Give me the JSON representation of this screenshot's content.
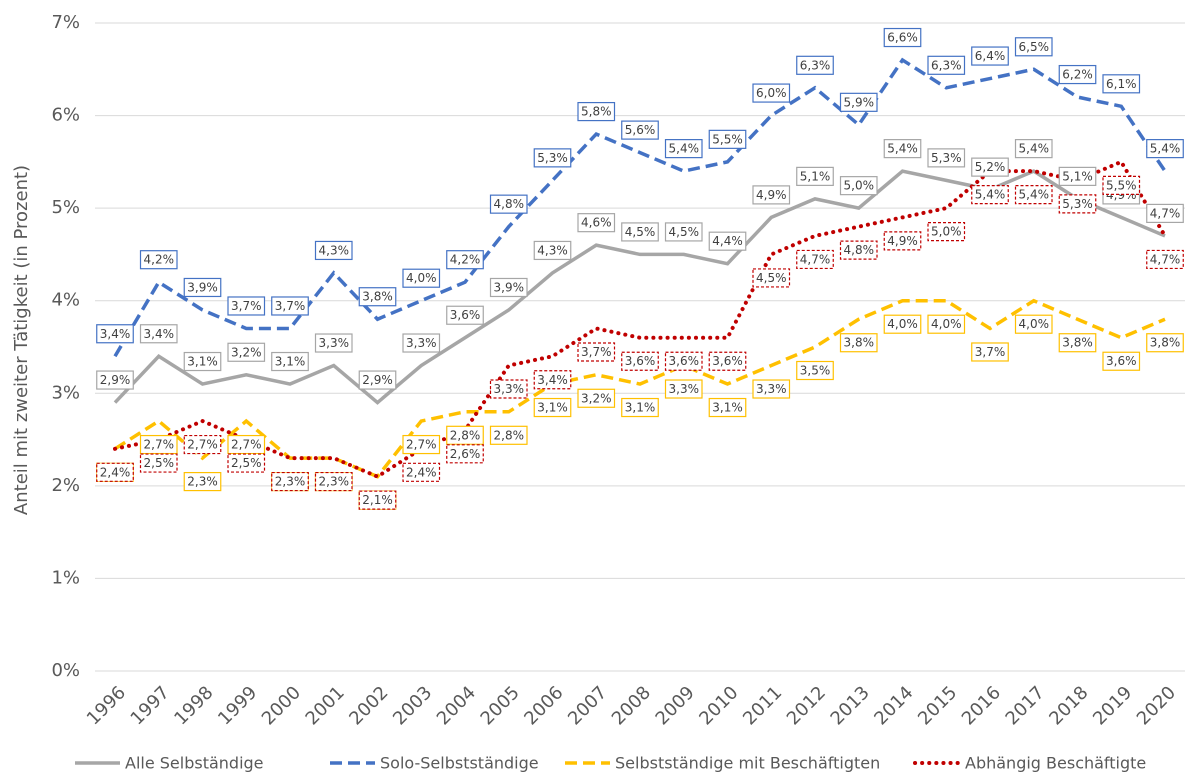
{
  "chart_data": {
    "type": "line",
    "y_label": "Anteil mit zweiter Tätigkeit (in Prozent)",
    "categories": [
      "1996",
      "1997",
      "1998",
      "1999",
      "2000",
      "2001",
      "2002",
      "2003",
      "2004",
      "2005",
      "2006",
      "2007",
      "2008",
      "2009",
      "2010",
      "2011",
      "2012",
      "2013",
      "2014",
      "2015",
      "2016",
      "2017",
      "2018",
      "2019",
      "2020"
    ],
    "ylim": [
      0,
      7
    ],
    "yticks": [
      {
        "value": 0,
        "label": "0%"
      },
      {
        "value": 1,
        "label": "1%"
      },
      {
        "value": 2,
        "label": "2%"
      },
      {
        "value": 3,
        "label": "3%"
      },
      {
        "value": 4,
        "label": "4%"
      },
      {
        "value": 5,
        "label": "5%"
      },
      {
        "value": 6,
        "label": "6%"
      },
      {
        "value": 7,
        "label": "7%"
      }
    ],
    "grid": true,
    "legend": "bottom",
    "series": [
      {
        "name": "Alle Selbständige",
        "color": "#a6a6a6",
        "line_style": "solid",
        "values": [
          2.9,
          3.4,
          3.1,
          3.2,
          3.1,
          3.3,
          2.9,
          3.3,
          3.6,
          3.9,
          4.3,
          4.6,
          4.5,
          4.5,
          4.4,
          4.9,
          5.1,
          5.0,
          5.4,
          5.3,
          5.2,
          5.4,
          5.1,
          4.9,
          4.7
        ],
        "value_labels": [
          "2,9%",
          "3,4%",
          "3,1%",
          "3,2%",
          "3,1%",
          "3,3%",
          "2,9%",
          "3,3%",
          "3,6%",
          "3,9%",
          "4,3%",
          "4,6%",
          "4,5%",
          "4,5%",
          "4,4%",
          "4,9%",
          "5,1%",
          "5,0%",
          "5,4%",
          "5,3%",
          "5,2%",
          "5,4%",
          "5,1%",
          "4,9%",
          "4,7%"
        ]
      },
      {
        "name": "Solo-Selbstständige",
        "color": "#4472c4",
        "line_style": "dashed",
        "values": [
          3.4,
          4.2,
          3.9,
          3.7,
          3.7,
          4.3,
          3.8,
          4.0,
          4.2,
          4.8,
          5.3,
          5.8,
          5.6,
          5.4,
          5.5,
          6.0,
          6.3,
          5.9,
          6.6,
          6.3,
          6.4,
          6.5,
          6.2,
          6.1,
          5.4
        ],
        "value_labels": [
          "3,4%",
          "4,2%",
          "3,9%",
          "3,7%",
          "3,7%",
          "4,3%",
          "3,8%",
          "4,0%",
          "4,2%",
          "4,8%",
          "5,3%",
          "5,8%",
          "5,6%",
          "5,4%",
          "5,5%",
          "6,0%",
          "6,3%",
          "5,9%",
          "6,6%",
          "6,3%",
          "6,4%",
          "6,5%",
          "6,2%",
          "6,1%",
          "5,4%"
        ]
      },
      {
        "name": "Selbstständige mit Beschäftigten",
        "color": "#ffc000",
        "line_style": "dashed",
        "values": [
          2.4,
          2.7,
          2.3,
          2.7,
          2.3,
          2.3,
          2.1,
          2.7,
          2.8,
          2.8,
          3.1,
          3.2,
          3.1,
          3.3,
          3.1,
          3.3,
          3.5,
          3.8,
          4.0,
          4.0,
          3.7,
          4.0,
          3.8,
          3.6,
          3.8
        ],
        "value_labels": [
          "2,4%",
          "2,7%",
          "2,3%",
          "2,7%",
          "2,3%",
          "2,3%",
          "2,1%",
          "2,7%",
          "2,8%",
          "2,8%",
          "3,1%",
          "3,2%",
          "3,1%",
          "3,3%",
          "3,1%",
          "3,3%",
          "3,5%",
          "3,8%",
          "4,0%",
          "4,0%",
          "3,7%",
          "4,0%",
          "3,8%",
          "3,6%",
          "3,8%"
        ]
      },
      {
        "name": "Abhängig Beschäftigte",
        "color": "#c00000",
        "line_style": "dotted",
        "values": [
          2.4,
          2.5,
          2.7,
          2.5,
          2.3,
          2.3,
          2.1,
          2.4,
          2.6,
          3.3,
          3.4,
          3.7,
          3.6,
          3.6,
          3.6,
          4.5,
          4.7,
          4.8,
          4.9,
          5.0,
          5.4,
          5.4,
          5.3,
          5.5,
          4.7
        ],
        "value_labels": [
          "2,4%",
          "2,5%",
          "2,7%",
          "2,5%",
          "2,3%",
          "2,3%",
          "2,1%",
          "2,4%",
          "2,6%",
          "3,3%",
          "3,4%",
          "3,7%",
          "3,6%",
          "3,6%",
          "3,6%",
          "4,5%",
          "4,7%",
          "4,8%",
          "4,9%",
          "5,0%",
          "5,4%",
          "5,4%",
          "5,3%",
          "5,5%",
          "4,7%"
        ]
      }
    ]
  }
}
